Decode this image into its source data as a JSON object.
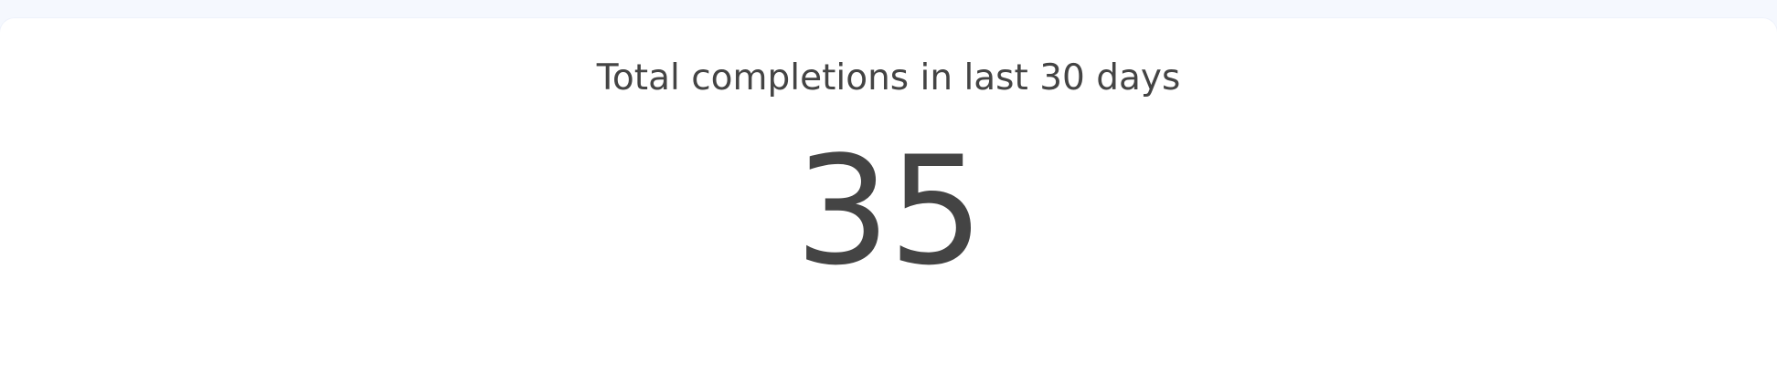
{
  "metric_card": {
    "title": "Total completions in last 30 days",
    "value": "35"
  },
  "colors": {
    "background": "#f5f8fe",
    "card": "#ffffff",
    "text": "#444444"
  }
}
